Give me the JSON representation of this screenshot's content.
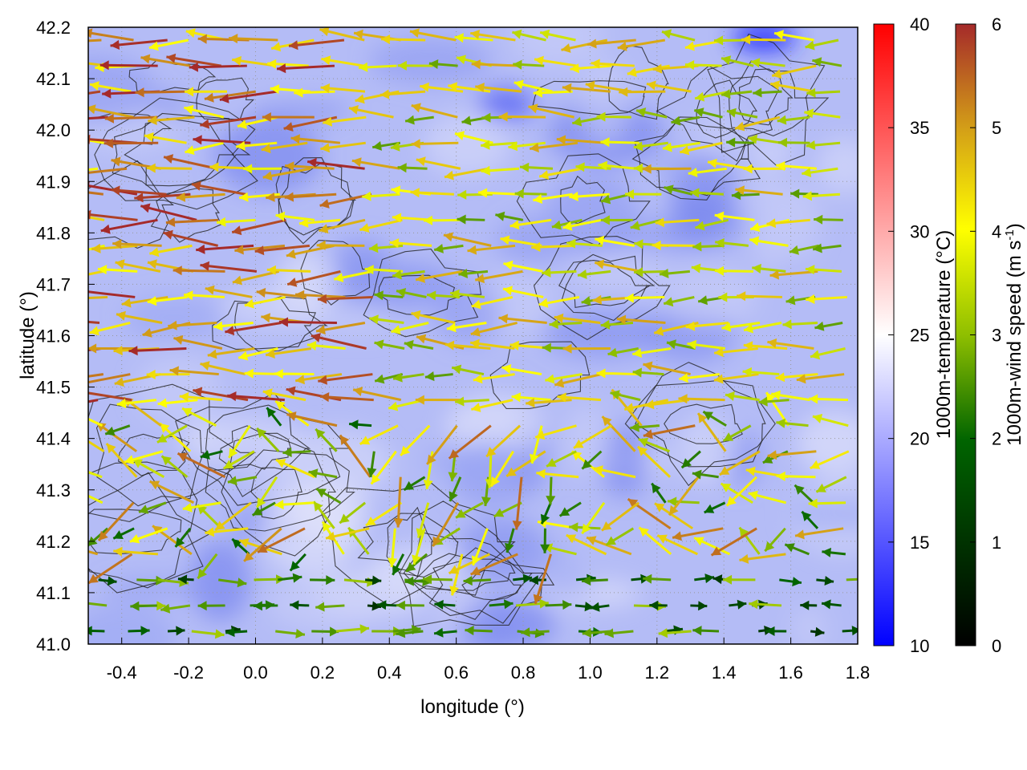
{
  "chart_data": {
    "type": "heatmap",
    "subtype": "map with temperature field, terrain contours and colored wind vectors",
    "xlabel": "longitude (°)",
    "ylabel": "latitude (°)",
    "xlim": [
      -0.5,
      1.8
    ],
    "ylim": [
      41.0,
      42.2
    ],
    "xticks": [
      "-0.4",
      "-0.2",
      "0.0",
      "0.2",
      "0.4",
      "0.6",
      "0.8",
      "1.0",
      "1.2",
      "1.4",
      "1.6",
      "1.8"
    ],
    "yticks": [
      "41.0",
      "41.1",
      "41.2",
      "41.3",
      "41.4",
      "41.5",
      "41.6",
      "41.7",
      "41.8",
      "41.9",
      "42.0",
      "42.1",
      "42.2"
    ],
    "grid": true,
    "temperature_colorbar": {
      "label": "1000m-temperature (°C)",
      "range": [
        10,
        40
      ],
      "ticks": [
        "10",
        "15",
        "20",
        "25",
        "30",
        "35",
        "40"
      ],
      "colors": [
        "#0000ff",
        "#ffffff",
        "#ff0000"
      ]
    },
    "wind_colorbar": {
      "label_main": "1000m-wind speed (m s",
      "label_sup": "-1",
      "label_end": ")",
      "range": [
        0,
        6
      ],
      "ticks": [
        "0",
        "1",
        "2",
        "3",
        "4",
        "5",
        "6"
      ],
      "colors": [
        "#000000",
        "#006400",
        "#8fbf00",
        "#ffff00",
        "#d4a017",
        "#a52a2a"
      ]
    },
    "temperature_field_range_shown": [
      14,
      22
    ],
    "wind_vector_stats": {
      "dominant_direction_north": "westward (easterly flow)",
      "strongest_speeds_m_s": 6,
      "weakest_speeds_m_s": 1
    }
  }
}
